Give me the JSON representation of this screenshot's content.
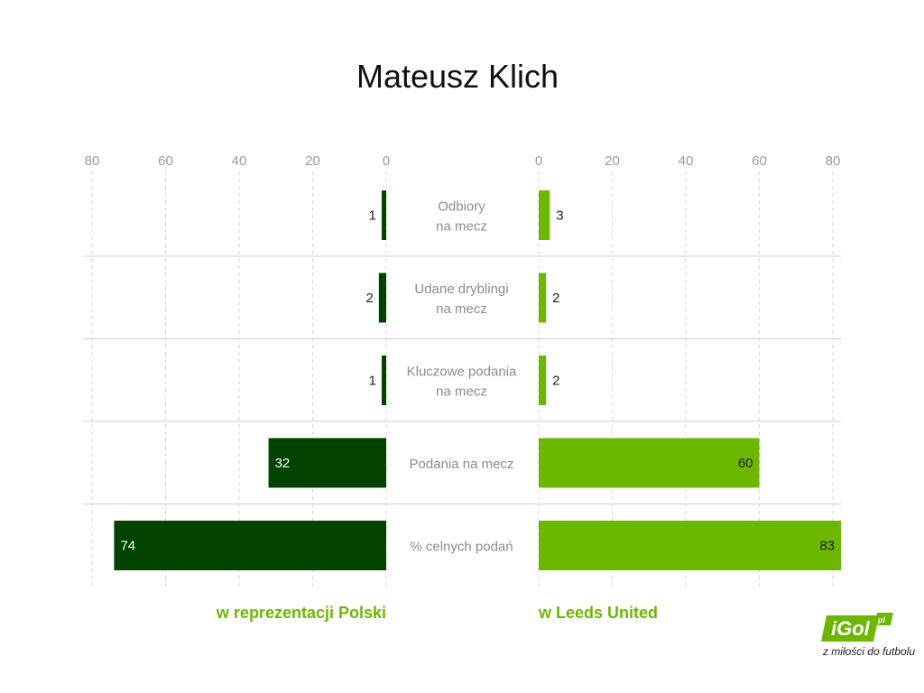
{
  "chart_data": {
    "type": "bar",
    "title": "Mateusz Klich",
    "categories": [
      [
        "Odbiory",
        "na mecz"
      ],
      [
        "Udane dryblingi",
        "na mecz"
      ],
      [
        "Kluczowe podania",
        "na mecz"
      ],
      [
        "Podania na mecz"
      ],
      [
        "% celnych podań"
      ]
    ],
    "series": [
      {
        "name": "w reprezentacji Polski",
        "values": [
          1,
          2,
          1,
          32,
          74
        ],
        "color": "#004400"
      },
      {
        "name": "w Leeds United",
        "values": [
          3,
          2,
          2,
          60,
          83
        ],
        "color": "#6cb800"
      }
    ],
    "left_ticks": [
      "80",
      "60",
      "40",
      "20",
      "0"
    ],
    "right_ticks": [
      "0",
      "20",
      "40",
      "60",
      "80"
    ],
    "xlim": [
      0,
      80
    ],
    "grid": true,
    "legend_placement": "bottom"
  },
  "logo": {
    "wordmark": "iGol",
    "tld": "pl",
    "tagline": "z miłości do futbolu",
    "color": "#6cb800"
  }
}
